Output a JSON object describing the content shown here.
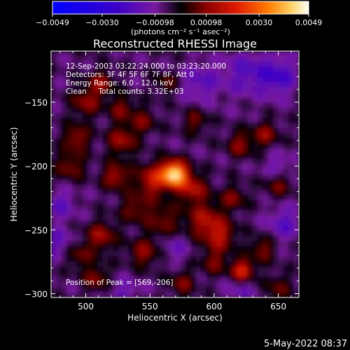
{
  "chart_data": {
    "type": "heatmap",
    "title": "Reconstructed RHESSI Image",
    "xlabel": "Heliocentric X (arcsec)",
    "ylabel": "Heliocentric Y (arcsec)",
    "xlim": [
      473,
      666
    ],
    "ylim": [
      -303,
      -110
    ],
    "x_ticks": [
      500,
      550,
      600,
      650
    ],
    "y_ticks": [
      -150,
      -200,
      -250,
      -300
    ],
    "colorbar": {
      "ticks": [
        -0.0049,
        -0.003,
        -0.00098,
        0.00098,
        0.003,
        0.0049
      ],
      "tick_labels": [
        "-0.0049",
        "-0.0030",
        "-0.00098",
        "0.00098",
        "0.0030",
        "0.0049"
      ],
      "units": "(photons cm⁻² s⁻¹ asec⁻²)",
      "range": [
        -0.0049,
        0.0049
      ]
    },
    "annotations": [
      "12-Sep-2003 03:22:24.000 to 03:23:20.000",
      "Detectors: 3F 4F 5F 6F 7F 8F, Att 0",
      "Energy Range: 6.0 - 12.0 keV",
      "Clean     Total counts: 3.32E+03"
    ],
    "peak_label": "Position of Peak = [569,-206]",
    "peak": [
      569,
      -206
    ],
    "sources": [
      {
        "x": 569,
        "y": -206,
        "v": 0.0049,
        "s": 7
      },
      {
        "x": 552,
        "y": -211,
        "v": 0.0022,
        "s": 9
      },
      {
        "x": 583,
        "y": -218,
        "v": 0.002,
        "s": 8
      },
      {
        "x": 593,
        "y": -243,
        "v": 0.0019,
        "s": 10
      },
      {
        "x": 605,
        "y": -255,
        "v": 0.0018,
        "s": 8
      },
      {
        "x": 560,
        "y": -242,
        "v": 0.0014,
        "s": 9
      },
      {
        "x": 538,
        "y": -233,
        "v": 0.0014,
        "s": 8
      },
      {
        "x": 523,
        "y": -208,
        "v": 0.002,
        "s": 7
      },
      {
        "x": 528,
        "y": -180,
        "v": 0.0018,
        "s": 8
      },
      {
        "x": 493,
        "y": -178,
        "v": 0.0018,
        "s": 7
      },
      {
        "x": 488,
        "y": -200,
        "v": 0.0015,
        "s": 8
      },
      {
        "x": 500,
        "y": -150,
        "v": 0.0016,
        "s": 8
      },
      {
        "x": 512,
        "y": -135,
        "v": 0.0016,
        "s": 7
      },
      {
        "x": 528,
        "y": -155,
        "v": 0.0014,
        "s": 7
      },
      {
        "x": 545,
        "y": -165,
        "v": 0.0013,
        "s": 7
      },
      {
        "x": 585,
        "y": -165,
        "v": 0.0013,
        "s": 7
      },
      {
        "x": 620,
        "y": -183,
        "v": 0.0016,
        "s": 7
      },
      {
        "x": 640,
        "y": -175,
        "v": 0.0016,
        "s": 7
      },
      {
        "x": 650,
        "y": -215,
        "v": 0.0013,
        "s": 7
      },
      {
        "x": 615,
        "y": -225,
        "v": 0.0014,
        "s": 7
      },
      {
        "x": 512,
        "y": -255,
        "v": 0.0018,
        "s": 8
      },
      {
        "x": 495,
        "y": -270,
        "v": 0.0013,
        "s": 7
      },
      {
        "x": 508,
        "y": -288,
        "v": 0.0015,
        "s": 7
      },
      {
        "x": 545,
        "y": -268,
        "v": 0.0016,
        "s": 8
      },
      {
        "x": 575,
        "y": -292,
        "v": 0.0014,
        "s": 7
      },
      {
        "x": 600,
        "y": -275,
        "v": 0.0014,
        "s": 7
      },
      {
        "x": 622,
        "y": -282,
        "v": 0.0028,
        "s": 6
      },
      {
        "x": 638,
        "y": -265,
        "v": 0.0015,
        "s": 7
      },
      {
        "x": 650,
        "y": -295,
        "v": 0.0012,
        "s": 7
      },
      {
        "x": 563,
        "y": -135,
        "v": 0.0012,
        "s": 6
      },
      {
        "x": 625,
        "y": -127,
        "v": -0.0012,
        "s": 12
      },
      {
        "x": 650,
        "y": -130,
        "v": -0.0016,
        "s": 10
      },
      {
        "x": 590,
        "y": -135,
        "v": -0.0011,
        "s": 10
      },
      {
        "x": 480,
        "y": -230,
        "v": -0.0011,
        "s": 8
      },
      {
        "x": 478,
        "y": -260,
        "v": -0.001,
        "s": 8
      },
      {
        "x": 655,
        "y": -245,
        "v": -0.0012,
        "s": 9
      },
      {
        "x": 650,
        "y": -200,
        "v": -0.0009,
        "s": 7
      },
      {
        "x": 570,
        "y": -265,
        "v": -0.0008,
        "s": 7
      },
      {
        "x": 530,
        "y": -300,
        "v": -0.0009,
        "s": 8
      },
      {
        "x": 620,
        "y": -300,
        "v": -0.0008,
        "s": 8
      }
    ]
  },
  "footer": {
    "date": "5-May-2022 08:37"
  }
}
